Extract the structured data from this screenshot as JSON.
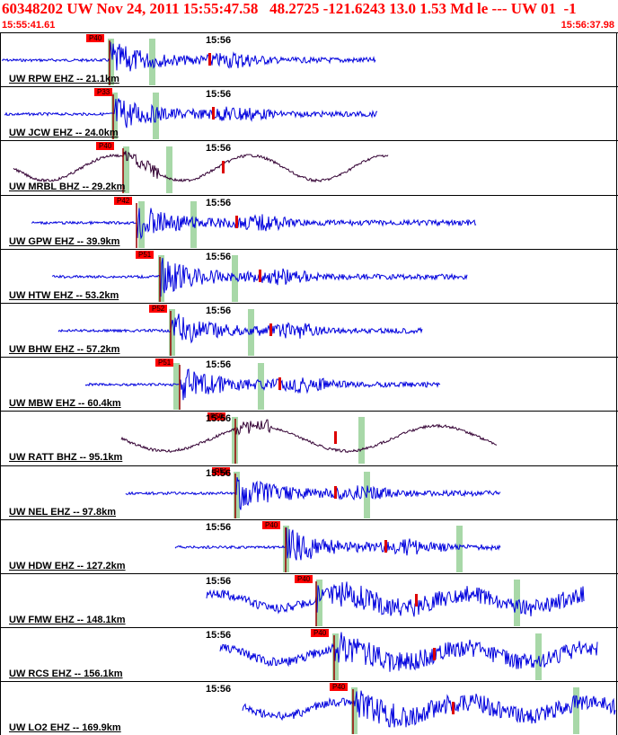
{
  "header": {
    "title": "60348202 UW Nov 24, 2011 15:55:47.58   48.2725 -121.6243 13.0 1.53 Md le --- UW 01  -1",
    "start_time": "15:55:41.61",
    "end_time": "15:56:37.98"
  },
  "colors": {
    "header_text": "#ff0000",
    "trace_ehz": "#0000dd",
    "trace_bhz": "#330033",
    "pick_box": "#ff0000",
    "window_shade": "#a8d8a8"
  },
  "panels": [
    {
      "station": "UW RPW EHZ -- 21.1km",
      "minute": "15:56",
      "pick": "P40",
      "type": "hf"
    },
    {
      "station": "UW JCW EHZ -- 24.0km",
      "minute": "15:56",
      "pick": "P33",
      "type": "hf"
    },
    {
      "station": "UW MRBL BHZ -- 29.2km",
      "minute": "15:56",
      "pick": "P40",
      "type": "lf"
    },
    {
      "station": "UW GPW EHZ -- 39.9km",
      "minute": "15:56",
      "pick": "P42",
      "type": "hf"
    },
    {
      "station": "UW HTW EHZ -- 53.2km",
      "minute": "15:56",
      "pick": "P51",
      "type": "hf"
    },
    {
      "station": "UW BHW EHZ -- 57.2km",
      "minute": "15:56",
      "pick": "P52",
      "type": "hf"
    },
    {
      "station": "UW MBW EHZ -- 60.4km",
      "minute": "15:56",
      "pick": "P51",
      "type": "hf"
    },
    {
      "station": "UW RATT BHZ -- 95.1km",
      "minute": "15:56",
      "pick": "P50",
      "type": "lf"
    },
    {
      "station": "UW NEL EHZ -- 97.8km",
      "minute": "15:56",
      "pick": "P51",
      "type": "hf"
    },
    {
      "station": "UW HDW EHZ -- 127.2km",
      "minute": "15:56",
      "pick": "P40",
      "type": "hf"
    },
    {
      "station": "UW FMW EHZ -- 148.1km",
      "minute": "15:56",
      "pick": "P40",
      "type": "hf"
    },
    {
      "station": "UW RCS EHZ -- 156.1km",
      "minute": "15:56",
      "pick": "P40",
      "type": "hf"
    },
    {
      "station": "UW LO2 EHZ -- 169.9km",
      "minute": "15:56",
      "pick": "P40",
      "type": "hf"
    }
  ]
}
